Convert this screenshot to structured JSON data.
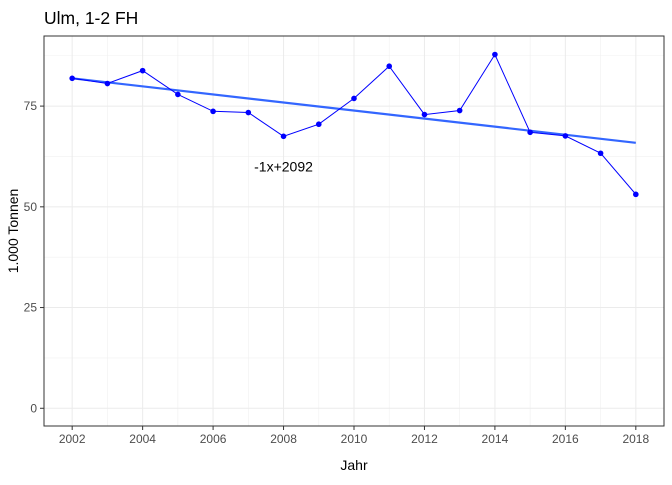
{
  "chart_data": {
    "type": "line",
    "title": "Ulm, 1-2 FH",
    "xlabel": "Jahr",
    "ylabel": "1.000 Tonnen",
    "xlim": [
      2001.2,
      2018.8
    ],
    "ylim": [
      -4.4,
      92.4
    ],
    "x_ticks": [
      2002,
      2004,
      2006,
      2008,
      2010,
      2012,
      2014,
      2016,
      2018
    ],
    "x_tick_labels": [
      "2002",
      "2004",
      "2006",
      "2008",
      "2010",
      "2012",
      "2014",
      "2016",
      "2018"
    ],
    "y_ticks": [
      0,
      25,
      50,
      75
    ],
    "y_tick_labels": [
      "0",
      "25",
      "50",
      "75"
    ],
    "grid": true,
    "series": [
      {
        "kind": "line+points",
        "color": "#0000FF",
        "x": [
          2002,
          2003,
          2004,
          2005,
          2006,
          2007,
          2008,
          2009,
          2010,
          2011,
          2012,
          2013,
          2014,
          2015,
          2016,
          2017,
          2018
        ],
        "y": [
          81.9,
          80.6,
          83.8,
          77.9,
          73.7,
          73.4,
          67.5,
          70.5,
          76.9,
          84.9,
          72.9,
          73.9,
          87.8,
          68.5,
          67.6,
          63.3,
          53.1
        ]
      },
      {
        "kind": "trend",
        "color": "#3366FF",
        "x": [
          2002,
          2018
        ],
        "y": [
          81.9,
          65.9
        ]
      }
    ],
    "annotations": [
      {
        "text": "-1x+2092",
        "x": 2008,
        "y": 60
      }
    ]
  }
}
